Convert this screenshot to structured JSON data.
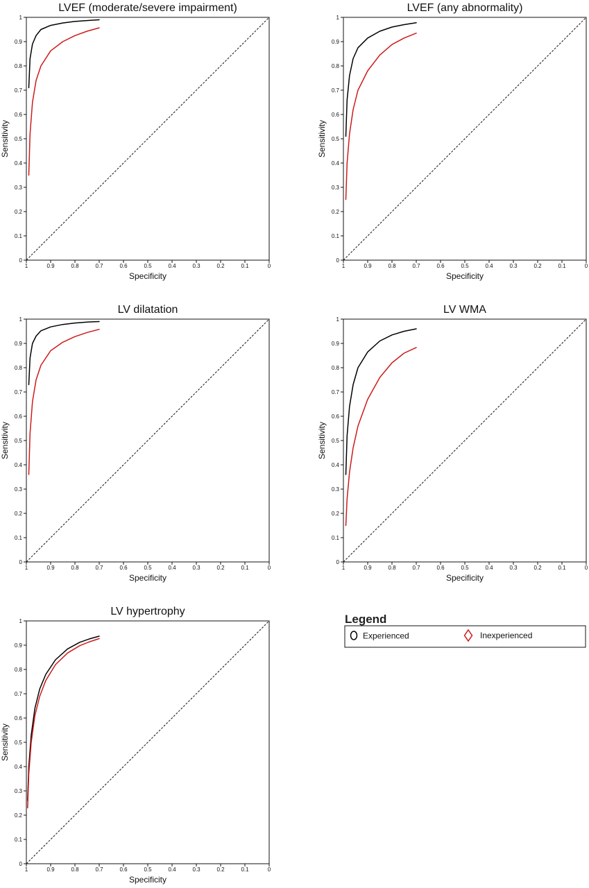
{
  "chart_data": [
    {
      "type": "line",
      "title": "LVEF (moderate/severe impairment)",
      "xlabel": "Specificity",
      "ylabel": "Sensitivity",
      "xlim": [
        1,
        0
      ],
      "ylim": [
        0,
        1
      ],
      "xticks": [
        "1",
        "0.9",
        "0.8",
        "0.7",
        "0.6",
        "0.5",
        "0.4",
        "0.3",
        "0.2",
        "0.1",
        "0"
      ],
      "yticks": [
        "0",
        "0.1",
        "0.2",
        "0.3",
        "0.4",
        "0.5",
        "0.6",
        "0.7",
        "0.8",
        "0.9",
        "1"
      ],
      "reference_line": true,
      "series": [
        {
          "name": "Experienced",
          "color": "#000000",
          "x": [
            0.99,
            0.985,
            0.975,
            0.96,
            0.94,
            0.9,
            0.85,
            0.8,
            0.75,
            0.7
          ],
          "y": [
            0.71,
            0.83,
            0.89,
            0.925,
            0.95,
            0.967,
            0.977,
            0.983,
            0.987,
            0.99
          ]
        },
        {
          "name": "Inexperienced",
          "color": "#cc1a1a",
          "x": [
            0.99,
            0.985,
            0.975,
            0.96,
            0.94,
            0.9,
            0.85,
            0.8,
            0.75,
            0.7
          ],
          "y": [
            0.35,
            0.52,
            0.65,
            0.74,
            0.8,
            0.862,
            0.9,
            0.925,
            0.943,
            0.957
          ]
        }
      ]
    },
    {
      "type": "line",
      "title": "LVEF (any abnormality)",
      "xlabel": "Specificity",
      "ylabel": "Sensitivity",
      "xlim": [
        1,
        0
      ],
      "ylim": [
        0,
        1
      ],
      "xticks": [
        "1",
        "0.9",
        "0.8",
        "0.7",
        "0.6",
        "0.5",
        "0.4",
        "0.3",
        "0.2",
        "0.1",
        "0"
      ],
      "yticks": [
        "0",
        "0.1",
        "0.2",
        "0.3",
        "0.4",
        "0.5",
        "0.6",
        "0.7",
        "0.8",
        "0.9",
        "1"
      ],
      "reference_line": true,
      "series": [
        {
          "name": "Experienced",
          "color": "#000000",
          "x": [
            0.99,
            0.985,
            0.975,
            0.96,
            0.94,
            0.9,
            0.85,
            0.8,
            0.75,
            0.7
          ],
          "y": [
            0.51,
            0.66,
            0.76,
            0.83,
            0.875,
            0.915,
            0.943,
            0.96,
            0.97,
            0.978
          ]
        },
        {
          "name": "Inexperienced",
          "color": "#cc1a1a",
          "x": [
            0.99,
            0.985,
            0.975,
            0.96,
            0.94,
            0.9,
            0.85,
            0.8,
            0.75,
            0.7
          ],
          "y": [
            0.25,
            0.4,
            0.52,
            0.62,
            0.7,
            0.78,
            0.845,
            0.888,
            0.915,
            0.935
          ]
        }
      ]
    },
    {
      "type": "line",
      "title": "LV dilatation",
      "xlabel": "Specificity",
      "ylabel": "Sensitivity",
      "xlim": [
        1,
        0
      ],
      "ylim": [
        0,
        1
      ],
      "xticks": [
        "1",
        "0.9",
        "0.8",
        "0.7",
        "0.6",
        "0.5",
        "0.4",
        "0.3",
        "0.2",
        "0.1",
        "0"
      ],
      "yticks": [
        "0",
        "0.1",
        "0.2",
        "0.3",
        "0.4",
        "0.5",
        "0.6",
        "0.7",
        "0.8",
        "0.9",
        "1"
      ],
      "reference_line": true,
      "series": [
        {
          "name": "Experienced",
          "color": "#000000",
          "x": [
            0.99,
            0.985,
            0.975,
            0.96,
            0.94,
            0.9,
            0.85,
            0.8,
            0.75,
            0.7
          ],
          "y": [
            0.73,
            0.84,
            0.9,
            0.93,
            0.952,
            0.968,
            0.978,
            0.984,
            0.988,
            0.99
          ]
        },
        {
          "name": "Inexperienced",
          "color": "#cc1a1a",
          "x": [
            0.99,
            0.985,
            0.975,
            0.96,
            0.94,
            0.9,
            0.85,
            0.8,
            0.75,
            0.7
          ],
          "y": [
            0.36,
            0.53,
            0.66,
            0.75,
            0.81,
            0.87,
            0.905,
            0.928,
            0.945,
            0.958
          ]
        }
      ]
    },
    {
      "type": "line",
      "title": "LV WMA",
      "xlabel": "Specificity",
      "ylabel": "Sensitivity",
      "xlim": [
        1,
        0
      ],
      "ylim": [
        0,
        1
      ],
      "xticks": [
        "1",
        "0.9",
        "0.8",
        "0.7",
        "0.6",
        "0.5",
        "0.4",
        "0.3",
        "0.2",
        "0.1",
        "0"
      ],
      "yticks": [
        "0",
        "0.1",
        "0.2",
        "0.3",
        "0.4",
        "0.5",
        "0.6",
        "0.7",
        "0.8",
        "0.9",
        "1"
      ],
      "reference_line": true,
      "series": [
        {
          "name": "Experienced",
          "color": "#000000",
          "x": [
            0.99,
            0.985,
            0.975,
            0.96,
            0.94,
            0.9,
            0.85,
            0.8,
            0.75,
            0.7
          ],
          "y": [
            0.36,
            0.52,
            0.64,
            0.73,
            0.8,
            0.865,
            0.91,
            0.935,
            0.95,
            0.96
          ]
        },
        {
          "name": "Inexperienced",
          "color": "#cc1a1a",
          "x": [
            0.99,
            0.985,
            0.975,
            0.96,
            0.94,
            0.9,
            0.85,
            0.8,
            0.75,
            0.7
          ],
          "y": [
            0.15,
            0.26,
            0.37,
            0.47,
            0.56,
            0.67,
            0.76,
            0.82,
            0.86,
            0.883
          ]
        }
      ]
    },
    {
      "type": "line",
      "title": "LV hypertrophy",
      "xlabel": "Specificity",
      "ylabel": "Sensitivity",
      "xlim": [
        1,
        0
      ],
      "ylim": [
        0,
        1
      ],
      "xticks": [
        "1",
        "0.9",
        "0.8",
        "0.7",
        "0.6",
        "0.5",
        "0.4",
        "0.3",
        "0.2",
        "0.1",
        "0"
      ],
      "yticks": [
        "0",
        "0.1",
        "0.2",
        "0.3",
        "0.4",
        "0.5",
        "0.6",
        "0.7",
        "0.8",
        "0.9",
        "1"
      ],
      "reference_line": true,
      "series": [
        {
          "name": "Experienced",
          "color": "#000000",
          "x": [
            0.995,
            0.99,
            0.98,
            0.965,
            0.945,
            0.92,
            0.88,
            0.83,
            0.78,
            0.74,
            0.7
          ],
          "y": [
            0.26,
            0.4,
            0.53,
            0.64,
            0.72,
            0.78,
            0.84,
            0.885,
            0.912,
            0.926,
            0.937
          ]
        },
        {
          "name": "Inexperienced",
          "color": "#cc1a1a",
          "x": [
            0.995,
            0.99,
            0.98,
            0.965,
            0.945,
            0.92,
            0.88,
            0.83,
            0.78,
            0.74,
            0.7
          ],
          "y": [
            0.23,
            0.37,
            0.5,
            0.61,
            0.69,
            0.755,
            0.82,
            0.868,
            0.898,
            0.914,
            0.927
          ]
        }
      ]
    }
  ],
  "legend": {
    "title": "Legend",
    "items": [
      {
        "label": "Experienced",
        "marker": "circle-icon",
        "color": "#000000"
      },
      {
        "label": "Inexperienced",
        "marker": "diamond-icon",
        "color": "#cc1a1a"
      }
    ]
  }
}
